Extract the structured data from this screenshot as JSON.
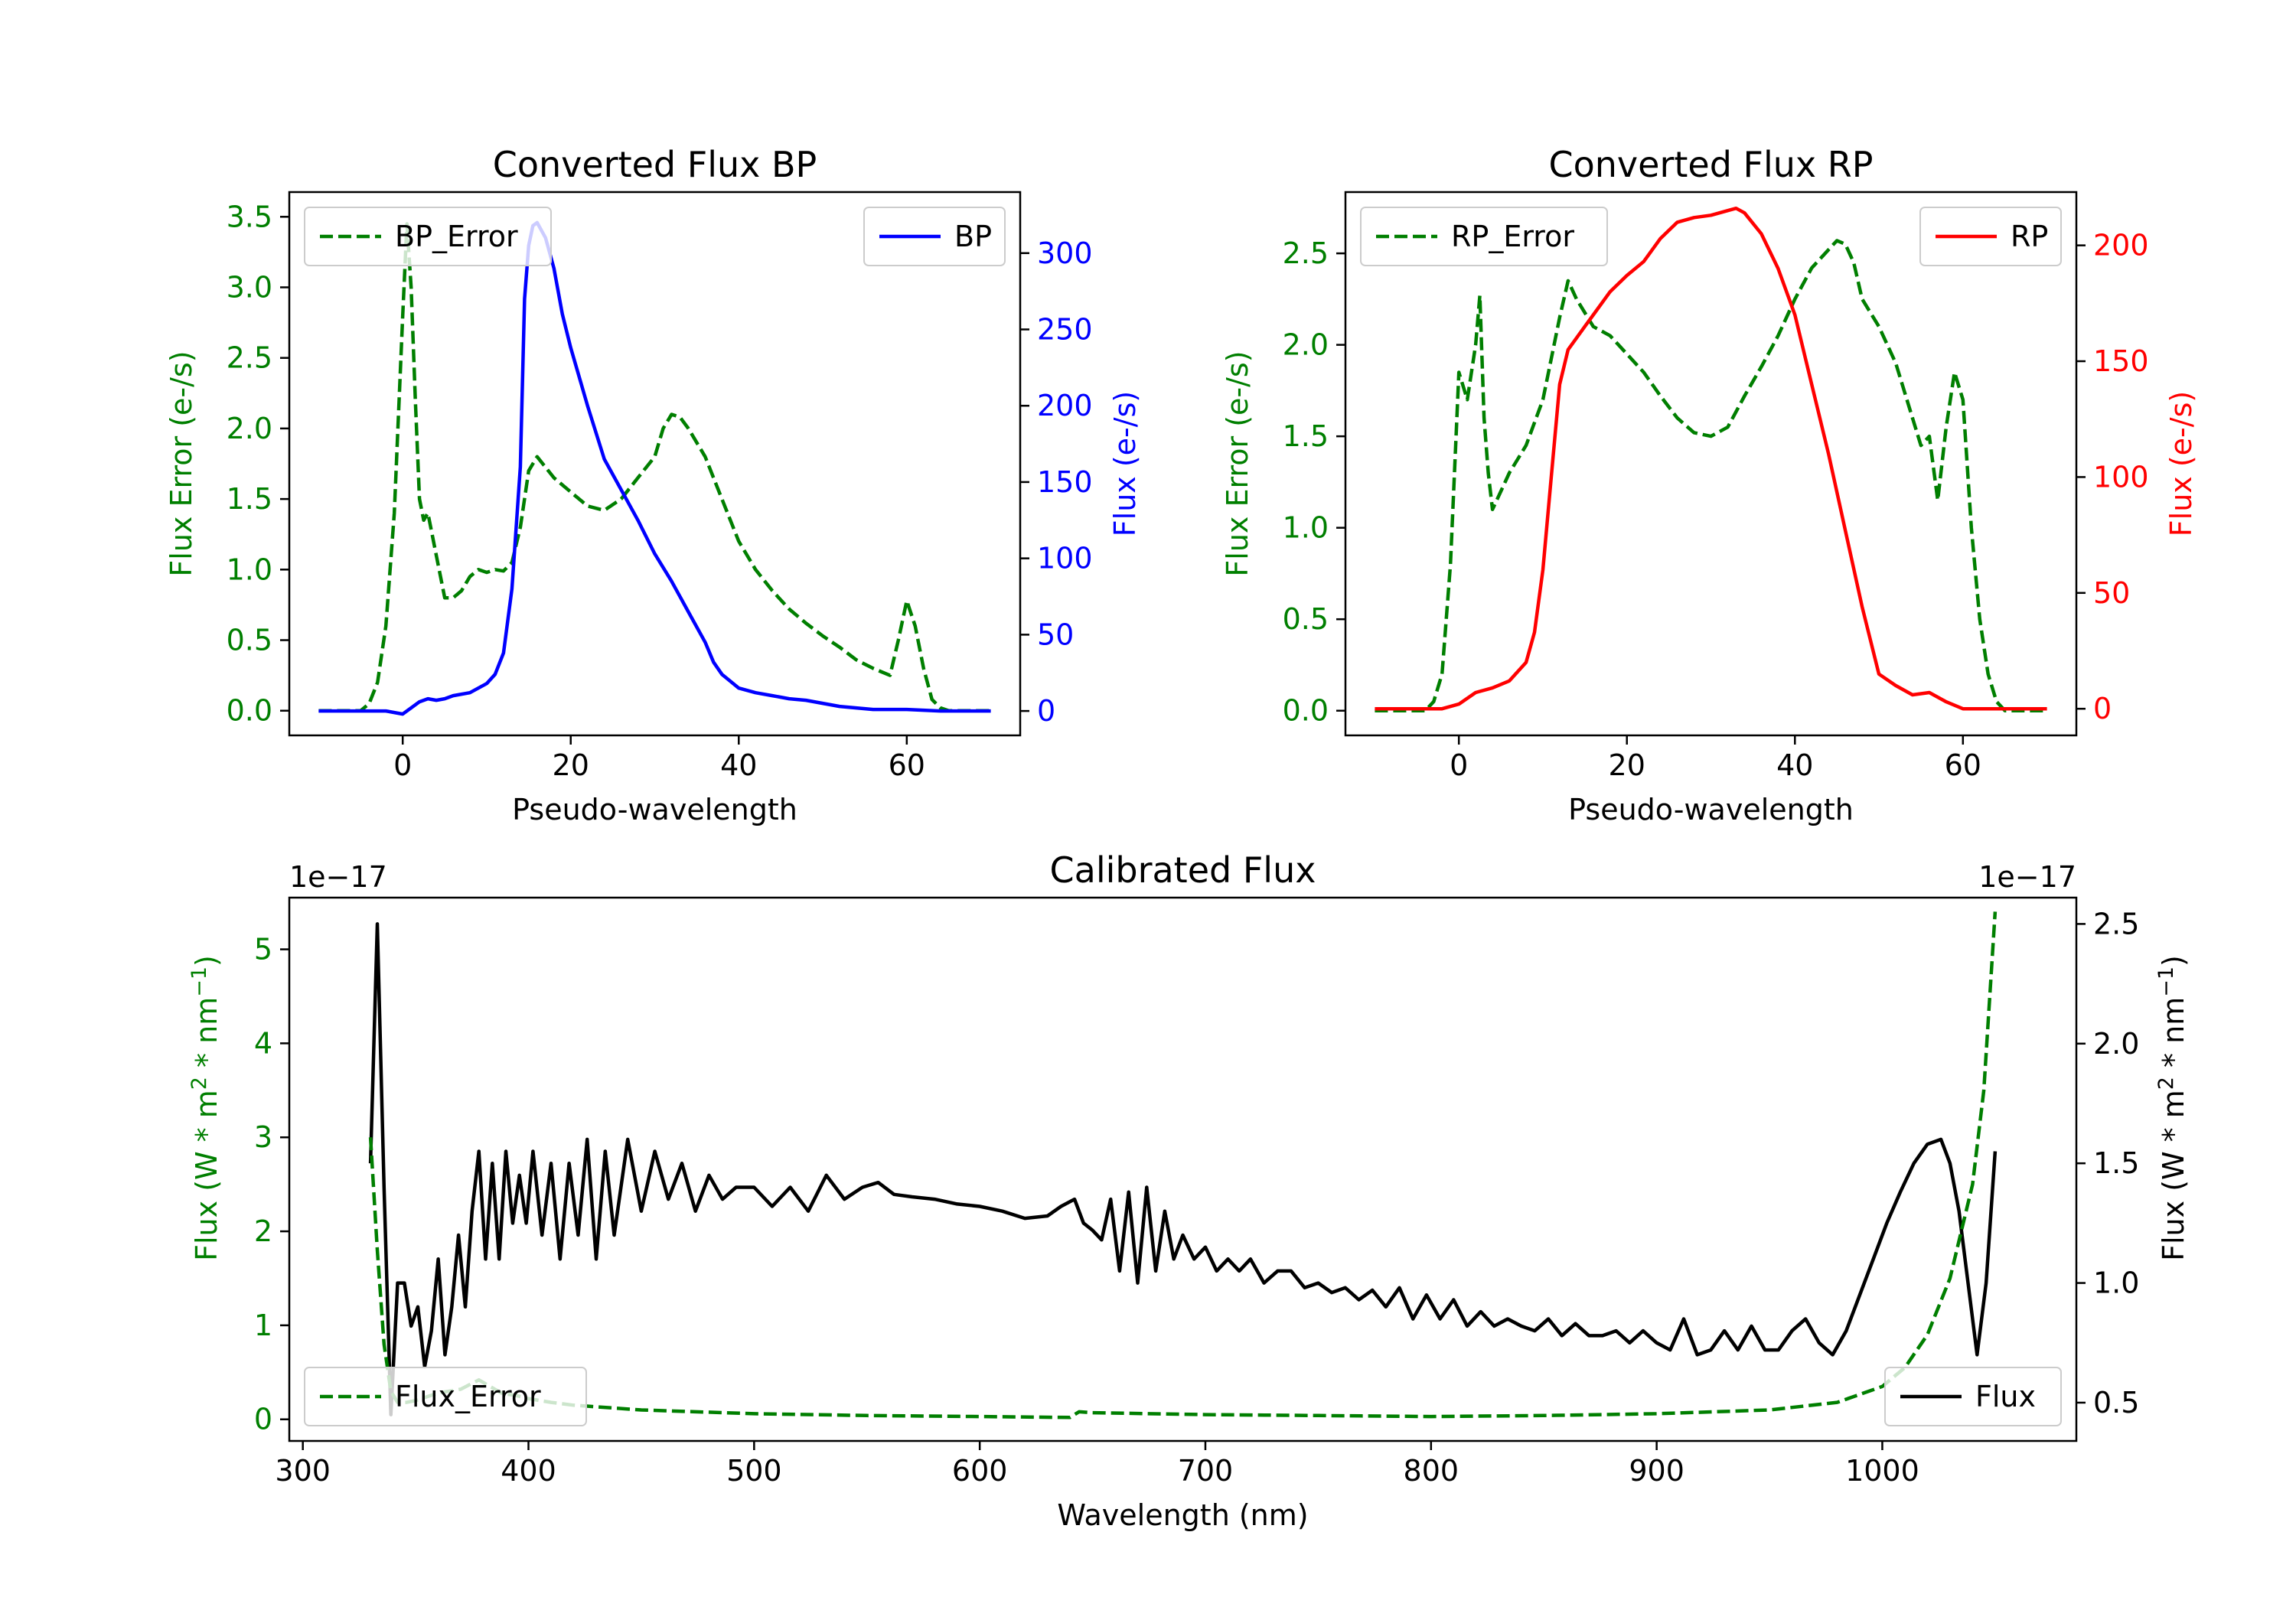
{
  "colors": {
    "green": "#007f00",
    "blue": "#0000ff",
    "red": "#ff0000",
    "black": "#000000"
  },
  "chart_data": [
    {
      "type": "line",
      "title": "Converted Flux BP",
      "xlabel": "Pseudo-wavelength",
      "ylabel_left": "Flux Error (e-/s)",
      "ylabel_right": "Flux (e-/s)",
      "xlim": [
        -13.5,
        73.5
      ],
      "ylim_left": [
        -0.175,
        3.675
      ],
      "ylim_right": [
        -16,
        340
      ],
      "xticks": [
        0,
        20,
        40,
        60
      ],
      "yticks_left": [
        "0.0",
        "0.5",
        "1.0",
        "1.5",
        "2.0",
        "2.5",
        "3.0",
        "3.5"
      ],
      "yticks_right": [
        "0",
        "50",
        "100",
        "150",
        "200",
        "250",
        "300"
      ],
      "legend": {
        "left": "top-left",
        "right": "top-right"
      },
      "series": [
        {
          "name": "BP_Error",
          "axis": "left",
          "color": "#007f00",
          "style": "dashed",
          "x": [
            -10,
            -5,
            -4,
            -3,
            -2,
            -1,
            0,
            0.5,
            1,
            1.5,
            2,
            2.5,
            3,
            4,
            5,
            6,
            7,
            8,
            9,
            10,
            11,
            12,
            13,
            14,
            15,
            16,
            18,
            20,
            22,
            24,
            26,
            28,
            30,
            31,
            32,
            33,
            34,
            36,
            38,
            40,
            42,
            44,
            46,
            48,
            50,
            52,
            54,
            56,
            58,
            59,
            60,
            61,
            62,
            63,
            64,
            65,
            70
          ],
          "values": [
            0,
            0,
            0.05,
            0.2,
            0.6,
            1.4,
            2.8,
            3.45,
            3.0,
            2.2,
            1.5,
            1.35,
            1.4,
            1.1,
            0.8,
            0.8,
            0.85,
            0.95,
            1.0,
            0.98,
            1.0,
            0.99,
            1.05,
            1.3,
            1.7,
            1.8,
            1.65,
            1.55,
            1.45,
            1.42,
            1.5,
            1.65,
            1.8,
            2.0,
            2.1,
            2.08,
            2.0,
            1.8,
            1.5,
            1.2,
            1.0,
            0.85,
            0.72,
            0.62,
            0.53,
            0.45,
            0.36,
            0.3,
            0.25,
            0.5,
            0.78,
            0.6,
            0.3,
            0.08,
            0.02,
            0,
            0
          ]
        },
        {
          "name": "BP",
          "axis": "right",
          "color": "#0000ff",
          "style": "solid",
          "x": [
            -10,
            -5,
            -2,
            0,
            1,
            2,
            3,
            4,
            5,
            6,
            8,
            10,
            11,
            12,
            13,
            14,
            14.5,
            15,
            15.5,
            16,
            17,
            18,
            19,
            20,
            22,
            24,
            26,
            28,
            30,
            32,
            34,
            36,
            37,
            38,
            40,
            42,
            44,
            46,
            48,
            50,
            52,
            54,
            56,
            60,
            64,
            70
          ],
          "values": [
            0,
            0,
            0,
            -2,
            2,
            6,
            8,
            7,
            8,
            10,
            12,
            18,
            24,
            38,
            80,
            160,
            270,
            305,
            318,
            320,
            310,
            290,
            260,
            238,
            200,
            165,
            145,
            125,
            103,
            85,
            65,
            45,
            32,
            24,
            15,
            12,
            10,
            8,
            7,
            5,
            3,
            2,
            1,
            1,
            0,
            0
          ]
        }
      ]
    },
    {
      "type": "line",
      "title": "Converted Flux RP",
      "xlabel": "Pseudo-wavelength",
      "ylabel_left": "Flux Error (e-/s)",
      "ylabel_right": "Flux (e-/s)",
      "xlim": [
        -13.5,
        73.5
      ],
      "ylim_left": [
        -0.135,
        2.835
      ],
      "ylim_right": [
        -11.5,
        223
      ],
      "xticks": [
        0,
        20,
        40,
        60
      ],
      "yticks_left": [
        "0.0",
        "0.5",
        "1.0",
        "1.5",
        "2.0",
        "2.5"
      ],
      "yticks_right": [
        "0",
        "50",
        "100",
        "150",
        "200"
      ],
      "legend": {
        "left": "top-left",
        "right": "top-right"
      },
      "series": [
        {
          "name": "RP_Error",
          "axis": "left",
          "color": "#007f00",
          "style": "dashed",
          "x": [
            -10,
            -4,
            -3,
            -2,
            -1,
            0,
            1,
            2,
            2.5,
            3,
            3.5,
            4,
            5,
            6,
            8,
            10,
            12,
            13,
            14,
            16,
            18,
            20,
            22,
            24,
            26,
            28,
            30,
            32,
            34,
            36,
            38,
            40,
            42,
            44,
            45,
            46,
            47,
            48,
            50,
            52,
            54,
            55,
            56,
            57,
            58,
            59,
            60,
            61,
            62,
            63,
            64,
            65,
            70
          ],
          "values": [
            0,
            0,
            0.05,
            0.2,
            0.8,
            1.85,
            1.7,
            2.0,
            2.27,
            1.6,
            1.3,
            1.1,
            1.2,
            1.3,
            1.45,
            1.7,
            2.15,
            2.35,
            2.25,
            2.1,
            2.05,
            1.95,
            1.85,
            1.72,
            1.6,
            1.52,
            1.5,
            1.55,
            1.72,
            1.88,
            2.05,
            2.25,
            2.42,
            2.52,
            2.57,
            2.55,
            2.45,
            2.25,
            2.1,
            1.9,
            1.6,
            1.45,
            1.5,
            1.15,
            1.55,
            1.85,
            1.7,
            1.0,
            0.5,
            0.2,
            0.05,
            0,
            0
          ]
        },
        {
          "name": "RP",
          "axis": "right",
          "color": "#ff0000",
          "style": "solid",
          "x": [
            -10,
            -4,
            -2,
            0,
            2,
            4,
            6,
            8,
            9,
            10,
            11,
            12,
            13,
            14,
            15,
            16,
            18,
            20,
            22,
            24,
            26,
            28,
            30,
            32,
            33,
            34,
            36,
            38,
            40,
            42,
            44,
            46,
            48,
            50,
            52,
            54,
            56,
            58,
            60,
            62,
            64,
            70
          ],
          "values": [
            0,
            0,
            0,
            2,
            7,
            9,
            12,
            20,
            33,
            60,
            100,
            140,
            155,
            160,
            165,
            170,
            180,
            187,
            193,
            203,
            210,
            212,
            213,
            215,
            216,
            214,
            205,
            190,
            170,
            140,
            110,
            77,
            44,
            15,
            10,
            6,
            7,
            3,
            0,
            0,
            0,
            0
          ]
        }
      ]
    },
    {
      "type": "line",
      "title": "Calibrated Flux",
      "xlabel": "Wavelength (nm)",
      "ylabel_left": "Flux (W * m$^2$ * nm$^{-1}$)",
      "ylabel_right": "Flux (W * m$^2$ * nm$^{-1}$)",
      "ylabel_text": "Flux (W * m",
      "ylabel_sup1": "2",
      "ylabel_mid": " * nm",
      "ylabel_sup2": "−1",
      "ylabel_end": ")",
      "offset_left": "1e−17",
      "offset_right": "1e−17",
      "xlim": [
        294,
        1086
      ],
      "ylim_left": [
        -0.23,
        5.55
      ],
      "ylim_right": [
        0.34,
        2.61
      ],
      "xticks": [
        300,
        400,
        500,
        600,
        700,
        800,
        900,
        1000
      ],
      "yticks_left": [
        "0",
        "1",
        "2",
        "3",
        "4",
        "5"
      ],
      "yticks_right": [
        "0.5",
        "1.0",
        "1.5",
        "2.0",
        "2.5"
      ],
      "legend": {
        "left": "bottom-left",
        "right": "bottom-right"
      },
      "series": [
        {
          "name": "Flux",
          "axis": "right",
          "color": "#000000",
          "style": "solid",
          "x": [
            330,
            333,
            336,
            339,
            342,
            345,
            348,
            351,
            354,
            357,
            360,
            363,
            366,
            369,
            372,
            375,
            378,
            381,
            384,
            387,
            390,
            393,
            396,
            399,
            402,
            406,
            410,
            414,
            418,
            422,
            426,
            430,
            434,
            438,
            444,
            450,
            456,
            462,
            468,
            474,
            480,
            486,
            492,
            500,
            508,
            516,
            524,
            532,
            540,
            548,
            555,
            562,
            570,
            580,
            590,
            600,
            610,
            620,
            630,
            636,
            642,
            646,
            650,
            654,
            658,
            662,
            666,
            670,
            674,
            678,
            682,
            686,
            690,
            695,
            700,
            705,
            710,
            715,
            720,
            726,
            732,
            738,
            744,
            750,
            756,
            762,
            768,
            774,
            780,
            786,
            792,
            798,
            804,
            810,
            816,
            822,
            828,
            834,
            840,
            846,
            852,
            858,
            864,
            870,
            876,
            882,
            888,
            894,
            900,
            906,
            912,
            918,
            924,
            930,
            936,
            942,
            948,
            954,
            960,
            966,
            972,
            978,
            984,
            990,
            996,
            1002,
            1008,
            1014,
            1020,
            1026,
            1030,
            1034,
            1038,
            1042,
            1046,
            1050
          ],
          "values": [
            1.5,
            2.5,
            1.4,
            0.45,
            1.0,
            1.0,
            0.82,
            0.9,
            0.65,
            0.8,
            1.1,
            0.7,
            0.9,
            1.2,
            0.9,
            1.3,
            1.55,
            1.1,
            1.5,
            1.1,
            1.55,
            1.25,
            1.45,
            1.25,
            1.55,
            1.2,
            1.5,
            1.1,
            1.5,
            1.2,
            1.6,
            1.1,
            1.55,
            1.2,
            1.6,
            1.3,
            1.55,
            1.35,
            1.5,
            1.3,
            1.45,
            1.35,
            1.4,
            1.4,
            1.32,
            1.4,
            1.3,
            1.45,
            1.35,
            1.4,
            1.42,
            1.37,
            1.36,
            1.35,
            1.33,
            1.32,
            1.3,
            1.27,
            1.28,
            1.32,
            1.35,
            1.25,
            1.22,
            1.18,
            1.35,
            1.05,
            1.38,
            1.0,
            1.4,
            1.05,
            1.3,
            1.1,
            1.2,
            1.1,
            1.15,
            1.05,
            1.1,
            1.05,
            1.1,
            1.0,
            1.05,
            1.05,
            0.98,
            1.0,
            0.96,
            0.98,
            0.93,
            0.97,
            0.9,
            0.98,
            0.85,
            0.95,
            0.85,
            0.93,
            0.82,
            0.88,
            0.82,
            0.85,
            0.82,
            0.8,
            0.85,
            0.78,
            0.83,
            0.78,
            0.78,
            0.8,
            0.75,
            0.8,
            0.75,
            0.72,
            0.85,
            0.7,
            0.72,
            0.8,
            0.72,
            0.82,
            0.72,
            0.72,
            0.8,
            0.85,
            0.75,
            0.7,
            0.8,
            0.95,
            1.1,
            1.25,
            1.38,
            1.5,
            1.58,
            1.6,
            1.5,
            1.3,
            1.0,
            0.7,
            1.0,
            1.55
          ]
        },
        {
          "name": "Flux_Error",
          "axis": "left",
          "color": "#007f00",
          "style": "dashed",
          "x": [
            330,
            333,
            336,
            339,
            342,
            346,
            350,
            355,
            360,
            370,
            378,
            383,
            388,
            395,
            400,
            410,
            420,
            450,
            500,
            550,
            600,
            640,
            644,
            650,
            700,
            750,
            800,
            850,
            900,
            950,
            980,
            1000,
            1010,
            1020,
            1030,
            1040,
            1045,
            1050
          ],
          "values": [
            3.0,
            1.8,
            0.8,
            0.3,
            0.18,
            0.18,
            0.2,
            0.24,
            0.28,
            0.32,
            0.42,
            0.35,
            0.28,
            0.25,
            0.22,
            0.18,
            0.15,
            0.1,
            0.06,
            0.04,
            0.03,
            0.02,
            0.08,
            0.07,
            0.05,
            0.04,
            0.03,
            0.04,
            0.06,
            0.1,
            0.18,
            0.35,
            0.55,
            0.9,
            1.5,
            2.5,
            3.5,
            5.4
          ]
        }
      ]
    }
  ]
}
